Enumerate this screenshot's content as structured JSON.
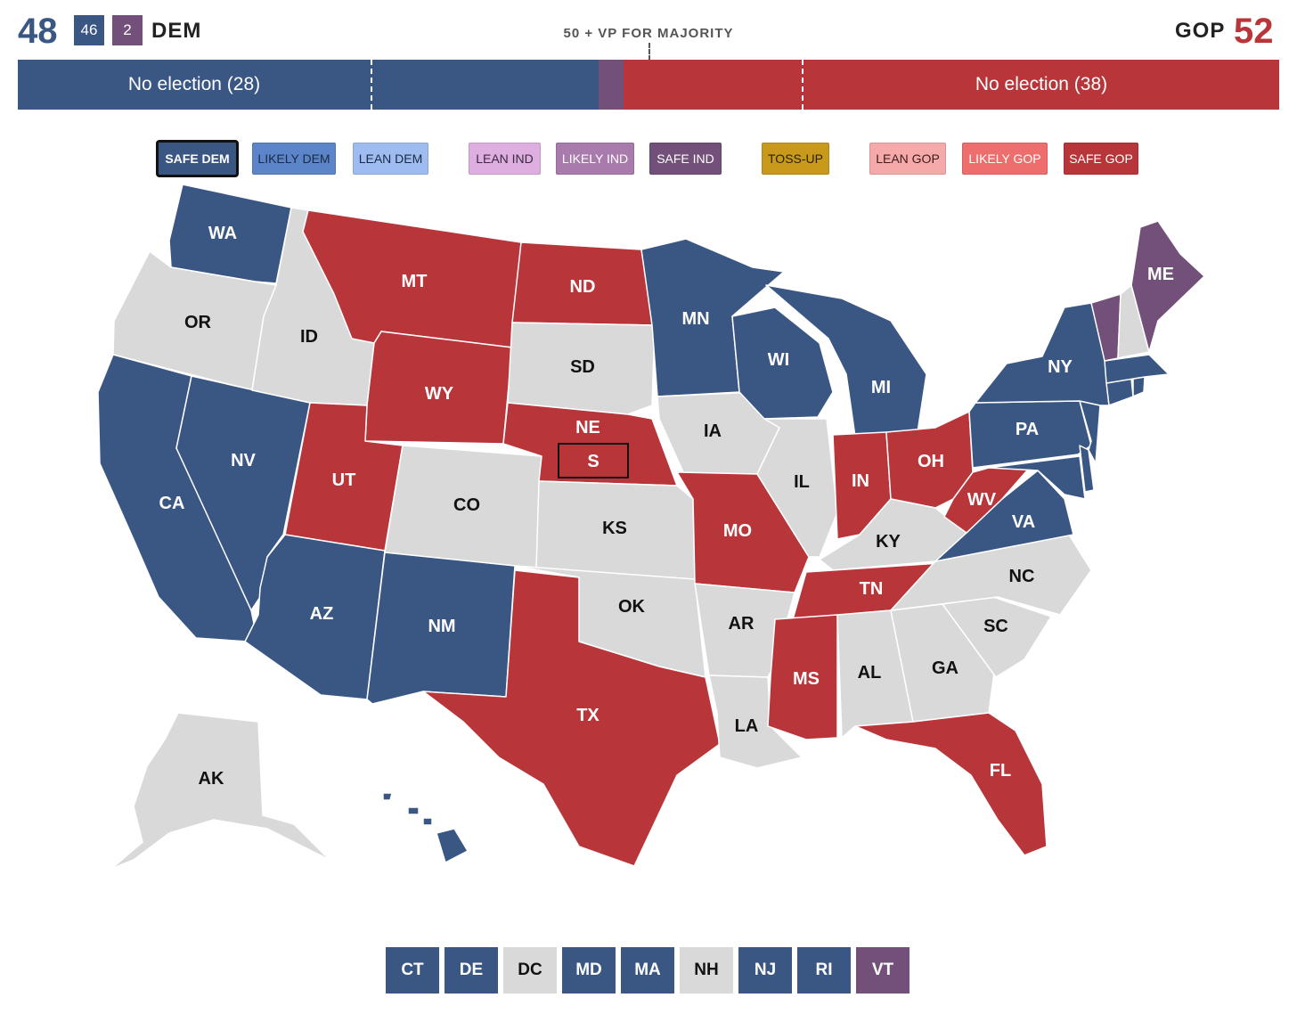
{
  "colors": {
    "dem": "#3a5784",
    "ind": "#735079",
    "gop": "#b8363a",
    "none": "#d9d9d9",
    "likely_dem": "#5b85c8",
    "lean_dem": "#9fbcf0",
    "lean_ind": "#deaee0",
    "likely_ind": "#a87bac",
    "tossup": "#c9991c",
    "lean_gop": "#f5a9a9",
    "likely_gop": "#ee6e6e"
  },
  "header": {
    "dem_total": "48",
    "dem_count": "46",
    "ind_count": "2",
    "dem_label": "DEM",
    "majority_label": "50 + VP FOR MAJORITY",
    "gop_label": "GOP",
    "gop_total": "52"
  },
  "bar": {
    "dem_no_election": "No election (28)",
    "gop_no_election": "No election (38)"
  },
  "ratings": [
    {
      "label": "SAFE DEM",
      "color": "dem",
      "text": "#ffffff",
      "selected": true
    },
    {
      "label": "LIKELY DEM",
      "color": "likely_dem",
      "text": "#1b2a44"
    },
    {
      "label": "LEAN DEM",
      "color": "lean_dem",
      "text": "#1b2a44"
    },
    {
      "label": "LEAN IND",
      "color": "lean_ind",
      "text": "#3b2a3d"
    },
    {
      "label": "LIKELY IND",
      "color": "likely_ind",
      "text": "#ffffff"
    },
    {
      "label": "SAFE IND",
      "color": "ind",
      "text": "#ffffff"
    },
    {
      "label": "TOSS-UP",
      "color": "tossup",
      "text": "#2a2005"
    },
    {
      "label": "LEAN GOP",
      "color": "lean_gop",
      "text": "#3d1c1c"
    },
    {
      "label": "LIKELY GOP",
      "color": "likely_gop",
      "text": "#ffffff"
    },
    {
      "label": "SAFE GOP",
      "color": "gop",
      "text": "#ffffff"
    }
  ],
  "states": {
    "WA": "dem",
    "OR": "none",
    "CA": "dem",
    "NV": "dem",
    "ID": "none",
    "MT": "gop",
    "WY": "gop",
    "UT": "gop",
    "AZ": "dem",
    "CO": "none",
    "NM": "dem",
    "ND": "gop",
    "SD": "none",
    "NE": "gop",
    "KS": "none",
    "OK": "none",
    "TX": "gop",
    "MN": "dem",
    "IA": "none",
    "MO": "gop",
    "AR": "none",
    "LA": "none",
    "WI": "dem",
    "IL": "none",
    "MI": "dem",
    "IN": "gop",
    "OH": "gop",
    "KY": "none",
    "TN": "gop",
    "MS": "gop",
    "AL": "none",
    "GA": "none",
    "FL": "gop",
    "SC": "none",
    "NC": "none",
    "VA": "dem",
    "WV": "gop",
    "PA": "dem",
    "NY": "dem",
    "ME": "ind",
    "VT": "ind",
    "NH": "none",
    "MA": "dem",
    "CT": "dem",
    "RI": "dem",
    "NJ": "dem",
    "DE": "dem",
    "MD": "dem",
    "AK": "none",
    "HI": "dem"
  },
  "special_label": "S",
  "small_states": [
    {
      "code": "CT",
      "rating": "dem"
    },
    {
      "code": "DE",
      "rating": "dem"
    },
    {
      "code": "DC",
      "rating": "none"
    },
    {
      "code": "MD",
      "rating": "dem"
    },
    {
      "code": "MA",
      "rating": "dem"
    },
    {
      "code": "NH",
      "rating": "none"
    },
    {
      "code": "NJ",
      "rating": "dem"
    },
    {
      "code": "RI",
      "rating": "dem"
    },
    {
      "code": "VT",
      "rating": "ind"
    }
  ]
}
